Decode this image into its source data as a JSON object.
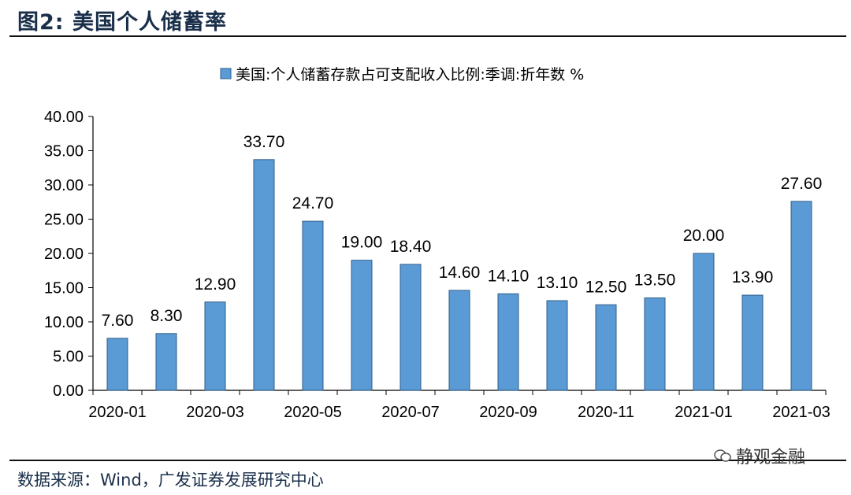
{
  "figure_title": "图2:  美国个人储蓄率",
  "source_note": "数据来源：Wind，广发证券发展研究中心",
  "watermark_text": "静观金融",
  "colors": {
    "bar": "#5b9bd5",
    "bar_stroke": "#2e5d8a",
    "axis": "#000000",
    "title": "#1a2f4a"
  },
  "chart_data": {
    "type": "bar",
    "legend": "美国:个人储蓄存款占可支配收入比例:季调:折年数 %",
    "legend_position": "top",
    "categories": [
      "2020-01",
      "2020-02",
      "2020-03",
      "2020-04",
      "2020-05",
      "2020-06",
      "2020-07",
      "2020-08",
      "2020-09",
      "2020-10",
      "2020-11",
      "2020-12",
      "2021-01",
      "2021-02",
      "2021-03"
    ],
    "x_tick_labels": [
      "2020-01",
      "",
      "2020-03",
      "",
      "2020-05",
      "",
      "2020-07",
      "",
      "2020-09",
      "",
      "2020-11",
      "",
      "2021-01",
      "",
      "2021-03"
    ],
    "values": [
      7.6,
      8.3,
      12.9,
      33.7,
      24.7,
      19.0,
      18.4,
      14.6,
      14.1,
      13.1,
      12.5,
      13.5,
      20.0,
      13.9,
      27.6
    ],
    "value_labels": [
      "7.60",
      "8.30",
      "12.90",
      "33.70",
      "24.70",
      "19.00",
      "18.40",
      "14.60",
      "14.10",
      "13.10",
      "12.50",
      "13.50",
      "20.00",
      "13.90",
      "27.60"
    ],
    "y_ticks": [
      "0.00",
      "5.00",
      "10.00",
      "15.00",
      "20.00",
      "25.00",
      "30.00",
      "35.00",
      "40.00"
    ],
    "ylim": [
      0,
      40
    ],
    "grid": false
  }
}
